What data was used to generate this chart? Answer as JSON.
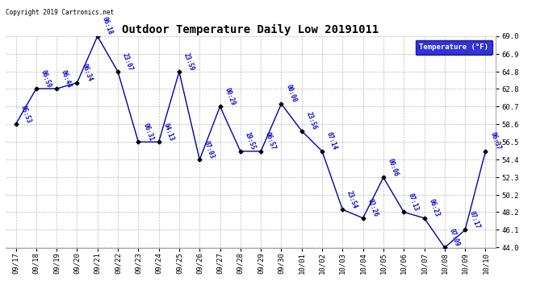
{
  "title": "Outdoor Temperature Daily Low 20191011",
  "legend_label": "Temperature (°F)",
  "copyright": "Copyright 2019 Cartronics.net",
  "background_color": "#ffffff",
  "plot_bg_color": "#ffffff",
  "grid_color": "#aaaaaa",
  "line_color": "#0000aa",
  "marker_color": "#000000",
  "label_color": "#0000cc",
  "x_labels": [
    "09/17",
    "09/18",
    "09/19",
    "09/20",
    "09/21",
    "09/22",
    "09/23",
    "09/24",
    "09/25",
    "09/26",
    "09/27",
    "09/28",
    "09/29",
    "09/30",
    "10/01",
    "10/02",
    "10/03",
    "10/04",
    "10/05",
    "10/06",
    "10/07",
    "10/08",
    "10/09",
    "10/10"
  ],
  "y_values": [
    58.6,
    62.8,
    62.8,
    63.5,
    69.0,
    64.8,
    56.5,
    56.5,
    64.8,
    54.4,
    60.7,
    55.4,
    55.4,
    61.0,
    57.8,
    55.4,
    48.5,
    47.5,
    52.3,
    48.2,
    47.5,
    44.0,
    46.1,
    55.4
  ],
  "time_labels": [
    "05:53",
    "06:59",
    "06:44",
    "06:34",
    "06:18",
    "23:07",
    "06:31",
    "04:13",
    "23:59",
    "07:03",
    "00:29",
    "19:55",
    "06:57",
    "00:00",
    "23:56",
    "07:14",
    "23:54",
    "02:26",
    "00:06",
    "07:13",
    "06:23",
    "07:09",
    "07:17",
    "06:37"
  ],
  "ylim_min": 44.0,
  "ylim_max": 69.0,
  "yticks": [
    44.0,
    46.1,
    48.2,
    50.2,
    52.3,
    54.4,
    56.5,
    58.6,
    60.7,
    62.8,
    64.8,
    66.9,
    69.0
  ],
  "legend_bg": "#0000cc",
  "legend_text": "#ffffff"
}
